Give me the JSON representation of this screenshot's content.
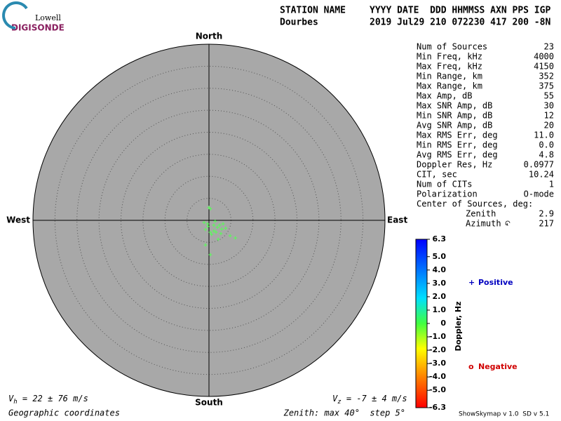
{
  "header": {
    "logo_top": "Lowell",
    "logo_bottom": "DIGISONDE",
    "row1": [
      "STATION NAME",
      "YYYY DATE  DDD HHMMSS AXN PPS IGP"
    ],
    "row2": [
      "Dourbes",
      "2019 Jul29 210 072230 417 200 -8N"
    ]
  },
  "stats": [
    [
      "Num of Sources",
      "23"
    ],
    [
      "Min Freq, kHz",
      "4000"
    ],
    [
      "Max Freq, kHz",
      "4150"
    ],
    [
      "Min Range, km",
      "352"
    ],
    [
      "Max Range, km",
      "375"
    ],
    [
      "Max Amp, dB",
      "55"
    ],
    [
      "Max SNR Amp, dB",
      "30"
    ],
    [
      "Min SNR Amp, dB",
      "12"
    ],
    [
      "Avg SNR Amp, dB",
      "20"
    ],
    [
      "Max RMS Err, deg",
      "11.0"
    ],
    [
      "Min RMS Err, deg",
      "0.0"
    ],
    [
      "Avg RMS Err, deg",
      "4.8"
    ],
    [
      "Doppler Res, Hz",
      "0.0977"
    ],
    [
      "CIT, sec",
      "10.24"
    ],
    [
      "Num of CITs",
      "1"
    ],
    [
      "Polarization",
      "O-mode"
    ]
  ],
  "center_title": "Center of Sources, deg:",
  "center": [
    [
      "Zenith",
      "2.9"
    ],
    [
      "Azimuth",
      "217"
    ]
  ],
  "footer": {
    "vh": [
      "V",
      "h",
      " = 22 ± 76 m/s"
    ],
    "vz": [
      "V",
      "z",
      " = -7 ± 4 m/s"
    ],
    "coords": "Geographic coordinates",
    "zenith": "Zenith: max 40°  step 5°",
    "version": "ShowSkymap v 1.0  SD v 5.1"
  },
  "chart_data": {
    "type": "skymap",
    "directions": {
      "north": "North",
      "south": "South",
      "east": "East",
      "west": "West"
    },
    "zenith_max": 40,
    "zenith_step": 5,
    "point_color": "#55ff55",
    "x": [
      0.0,
      0.3,
      1.4,
      2.4,
      3.2,
      1.9,
      1.1,
      0.3,
      -0.8,
      -0.3,
      0.6,
      2.7,
      3.8,
      4.8,
      6.0,
      2.1,
      -0.8,
      0.3,
      -1.1,
      1.1,
      2.9,
      1.6,
      -0.2
    ],
    "y": [
      2.9,
      2.6,
      -0.2,
      -1.1,
      -0.8,
      -1.6,
      -2.4,
      -2.7,
      -2.1,
      -0.8,
      -3.2,
      -3.0,
      -1.8,
      -3.5,
      -4.0,
      -4.3,
      -5.6,
      -7.8,
      -0.5,
      -1.1,
      -2.0,
      -2.7,
      -1.4
    ],
    "colorbar": {
      "title": "Doppler, Hz",
      "clim": [
        -6.3,
        6.3
      ],
      "ticks": [
        {
          "value": 6.3,
          "label": "6.3"
        },
        {
          "value": 5,
          "label": "5.0"
        },
        {
          "value": 4,
          "label": "4.0"
        },
        {
          "value": 3,
          "label": "3.0"
        },
        {
          "value": 2,
          "label": "2.0"
        },
        {
          "value": 1,
          "label": "1.0"
        },
        0,
        {
          "value": -1,
          "label": "-1.0"
        },
        {
          "value": -2,
          "label": "-2.0"
        },
        {
          "value": -3,
          "label": "-3.0"
        },
        {
          "value": -4,
          "label": "-4.0"
        },
        {
          "value": -5,
          "label": "-5.0"
        },
        {
          "value": -6.3,
          "label": "-6.3"
        }
      ]
    },
    "legend": [
      {
        "symbol": "+",
        "name": "Positive",
        "color": "#0000c0"
      },
      {
        "symbol": "o",
        "name": "Negative",
        "color": "#d00000"
      }
    ]
  }
}
